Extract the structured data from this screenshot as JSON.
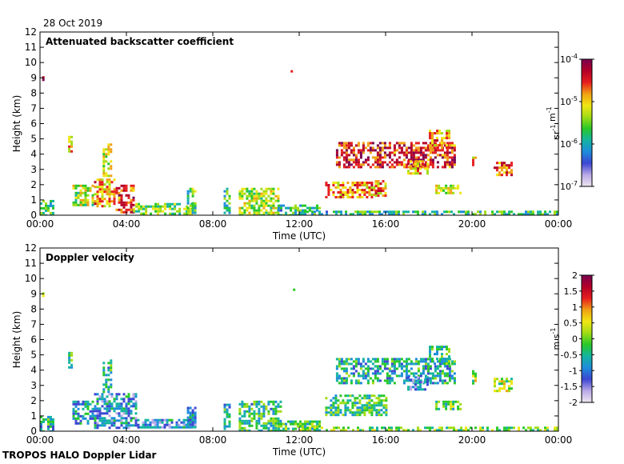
{
  "date_label": "28 Oct 2019",
  "footer": "TROPOS HALO Doppler Lidar",
  "colors": {
    "turbo_stops": [
      "#f0e6f0",
      "#b8a8e8",
      "#3c46d2",
      "#1e8cdc",
      "#14b4a0",
      "#28c828",
      "#a0dc14",
      "#f0e614",
      "#f0a014",
      "#e61e1e",
      "#b40028",
      "#780050"
    ]
  },
  "chart_data": [
    {
      "type": "heatmap",
      "title": "Attenuated backscatter coefficient",
      "xlabel": "Time (UTC)",
      "ylabel": "Height (km)",
      "xlim": [
        0,
        24
      ],
      "ylim": [
        0,
        12
      ],
      "x_ticks": [
        "00:00",
        "04:00",
        "08:00",
        "12:00",
        "16:00",
        "20:00",
        "00:00"
      ],
      "y_ticks": [
        "0",
        "1",
        "2",
        "3",
        "4",
        "5",
        "6",
        "7",
        "8",
        "9",
        "10",
        "11",
        "12"
      ],
      "colorbar": {
        "label": "sr-1 m-1",
        "scale": "log",
        "range": [
          1e-07,
          0.0001
        ],
        "ticks": [
          {
            "base": "10",
            "exp": "-4"
          },
          {
            "base": "10",
            "exp": "-5"
          },
          {
            "base": "10",
            "exp": "-6"
          },
          {
            "base": "10",
            "exp": "-7"
          }
        ]
      },
      "features": [
        {
          "t": [
            0.0,
            0.6
          ],
          "h": [
            0.0,
            1.0
          ],
          "level": 0.42
        },
        {
          "t": [
            0.1,
            0.2
          ],
          "h": [
            8.9,
            9.1
          ],
          "level": 0.9
        },
        {
          "t": [
            1.3,
            1.5
          ],
          "h": [
            4.2,
            5.2
          ],
          "level": 0.68
        },
        {
          "t": [
            1.5,
            2.5
          ],
          "h": [
            0.7,
            2.0
          ],
          "level": 0.55
        },
        {
          "t": [
            2.5,
            3.5
          ],
          "h": [
            0.6,
            2.4
          ],
          "level": 0.7
        },
        {
          "t": [
            3.5,
            4.3
          ],
          "h": [
            0.2,
            2.0
          ],
          "level": 0.82
        },
        {
          "t": [
            2.9,
            3.3
          ],
          "h": [
            2.6,
            4.7
          ],
          "level": 0.6
        },
        {
          "t": [
            4.3,
            7.0
          ],
          "h": [
            0.1,
            0.8
          ],
          "level": 0.5
        },
        {
          "t": [
            6.8,
            7.2
          ],
          "h": [
            0.2,
            1.8
          ],
          "level": 0.45
        },
        {
          "t": [
            8.5,
            8.8
          ],
          "h": [
            0.2,
            1.8
          ],
          "level": 0.4
        },
        {
          "t": [
            9.2,
            11.0
          ],
          "h": [
            0.0,
            1.8
          ],
          "level": 0.55
        },
        {
          "t": [
            11.0,
            13.0
          ],
          "h": [
            0.0,
            0.7
          ],
          "level": 0.4
        },
        {
          "t": [
            11.6,
            11.8
          ],
          "h": [
            9.2,
            9.5
          ],
          "level": 0.9
        },
        {
          "t": [
            13.2,
            15.5
          ],
          "h": [
            1.2,
            2.2
          ],
          "level": 0.72
        },
        {
          "t": [
            15.5,
            16.0
          ],
          "h": [
            1.3,
            2.3
          ],
          "level": 0.72
        },
        {
          "t": [
            13.7,
            19.2
          ],
          "h": [
            3.2,
            4.8
          ],
          "level": 0.85
        },
        {
          "t": [
            17.0,
            18.0
          ],
          "h": [
            2.8,
            3.6
          ],
          "level": 0.7
        },
        {
          "t": [
            18.0,
            19.0
          ],
          "h": [
            4.4,
            5.6
          ],
          "level": 0.72
        },
        {
          "t": [
            18.3,
            19.5
          ],
          "h": [
            1.4,
            2.0
          ],
          "level": 0.6
        },
        {
          "t": [
            20.0,
            20.2
          ],
          "h": [
            3.2,
            4.0
          ],
          "level": 0.7
        },
        {
          "t": [
            21.0,
            21.8
          ],
          "h": [
            2.7,
            3.5
          ],
          "level": 0.78
        },
        {
          "t": [
            12.0,
            24.0
          ],
          "h": [
            0.0,
            0.3
          ],
          "level": 0.4
        }
      ]
    },
    {
      "type": "heatmap",
      "title": "Doppler velocity",
      "xlabel": "Time (UTC)",
      "ylabel": "Height (km)",
      "xlim": [
        0,
        24
      ],
      "ylim": [
        0,
        12
      ],
      "x_ticks": [
        "00:00",
        "04:00",
        "08:00",
        "12:00",
        "16:00",
        "20:00",
        "00:00"
      ],
      "y_ticks": [
        "0",
        "1",
        "2",
        "3",
        "4",
        "5",
        "6",
        "7",
        "8",
        "9",
        "10",
        "11",
        "12"
      ],
      "colorbar": {
        "label": "m s-1",
        "scale": "linear",
        "range": [
          -2,
          2
        ],
        "ticks": [
          "2",
          "1.5",
          "1",
          "0.5",
          "0",
          "-0.5",
          "-1",
          "-1.5",
          "-2"
        ]
      },
      "features": [
        {
          "t": [
            0.0,
            0.6
          ],
          "h": [
            0.0,
            1.0
          ],
          "level": 0.35
        },
        {
          "t": [
            0.1,
            0.2
          ],
          "h": [
            8.9,
            9.1
          ],
          "level": 0.5
        },
        {
          "t": [
            1.3,
            1.5
          ],
          "h": [
            4.2,
            5.2
          ],
          "level": 0.38
        },
        {
          "t": [
            1.5,
            2.5
          ],
          "h": [
            0.5,
            2.0
          ],
          "level": 0.3
        },
        {
          "t": [
            2.5,
            4.5
          ],
          "h": [
            0.2,
            2.5
          ],
          "level": 0.28
        },
        {
          "t": [
            2.9,
            3.3
          ],
          "h": [
            2.6,
            4.7
          ],
          "level": 0.4
        },
        {
          "t": [
            4.5,
            7.0
          ],
          "h": [
            0.2,
            0.8
          ],
          "level": 0.25
        },
        {
          "t": [
            6.8,
            7.2
          ],
          "h": [
            0.3,
            1.6
          ],
          "level": 0.3
        },
        {
          "t": [
            8.5,
            8.8
          ],
          "h": [
            0.2,
            1.8
          ],
          "level": 0.35
        },
        {
          "t": [
            9.2,
            11.2
          ],
          "h": [
            0.0,
            2.0
          ],
          "level": 0.4
        },
        {
          "t": [
            11.0,
            13.0
          ],
          "h": [
            0.0,
            0.7
          ],
          "level": 0.45
        },
        {
          "t": [
            11.6,
            11.8
          ],
          "h": [
            9.2,
            9.5
          ],
          "level": 0.5
        },
        {
          "t": [
            13.2,
            16.0
          ],
          "h": [
            1.0,
            2.4
          ],
          "level": 0.42
        },
        {
          "t": [
            13.7,
            19.2
          ],
          "h": [
            3.2,
            4.8
          ],
          "level": 0.35
        },
        {
          "t": [
            17.0,
            18.0
          ],
          "h": [
            2.8,
            3.6
          ],
          "level": 0.25
        },
        {
          "t": [
            18.0,
            19.0
          ],
          "h": [
            4.4,
            5.6
          ],
          "level": 0.4
        },
        {
          "t": [
            18.3,
            19.5
          ],
          "h": [
            1.4,
            2.0
          ],
          "level": 0.45
        },
        {
          "t": [
            20.0,
            20.2
          ],
          "h": [
            3.2,
            4.0
          ],
          "level": 0.55
        },
        {
          "t": [
            21.0,
            21.8
          ],
          "h": [
            2.7,
            3.5
          ],
          "level": 0.55
        },
        {
          "t": [
            12.0,
            24.0
          ],
          "h": [
            0.0,
            0.3
          ],
          "level": 0.5
        }
      ]
    }
  ]
}
